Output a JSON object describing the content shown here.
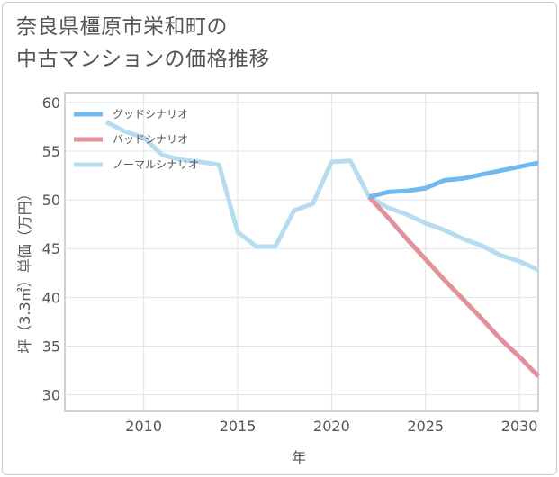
{
  "chart_data": {
    "type": "line",
    "title_lines": [
      "奈良県橿原市栄和町の",
      "中古マンションの価格推移"
    ],
    "xlabel": "年",
    "ylabel": "坪（3.3㎡）単価（万円）",
    "xlim": [
      2005.8,
      2031
    ],
    "ylim": [
      28.3,
      61
    ],
    "xticks": [
      2010,
      2015,
      2020,
      2025,
      2030
    ],
    "yticks": [
      30,
      35,
      40,
      45,
      50,
      55,
      60
    ],
    "legend_position": "top-left",
    "series": [
      {
        "name": "グッドシナリオ",
        "color": "#6fb9ef",
        "x": [
          2022,
          2023,
          2024,
          2025,
          2026,
          2027,
          2028,
          2029,
          2030,
          2031
        ],
        "y": [
          50.3,
          50.8,
          50.9,
          51.2,
          52.0,
          52.2,
          52.6,
          53.0,
          53.4,
          53.8
        ]
      },
      {
        "name": "バッドシナリオ",
        "color": "#e0919a",
        "x": [
          2022,
          2023,
          2024,
          2025,
          2026,
          2027,
          2028,
          2029,
          2030,
          2031
        ],
        "y": [
          50.3,
          48.2,
          46.0,
          43.9,
          41.8,
          39.8,
          37.8,
          35.7,
          33.9,
          31.9
        ]
      },
      {
        "name": "ノーマルシナリオ",
        "color": "#b8dcef",
        "x": [
          2008,
          2009,
          2010,
          2011,
          2012,
          2013,
          2014,
          2015,
          2016,
          2017,
          2018,
          2019,
          2020,
          2021,
          2022,
          2023,
          2024,
          2025,
          2026,
          2027,
          2028,
          2029,
          2030,
          2031
        ],
        "y": [
          58.0,
          57.0,
          56.4,
          54.6,
          54.1,
          53.9,
          53.6,
          46.7,
          45.2,
          45.2,
          48.9,
          49.6,
          53.9,
          54.0,
          50.3,
          49.2,
          48.5,
          47.6,
          46.9,
          46.0,
          45.3,
          44.3,
          43.7,
          42.8
        ]
      }
    ]
  }
}
